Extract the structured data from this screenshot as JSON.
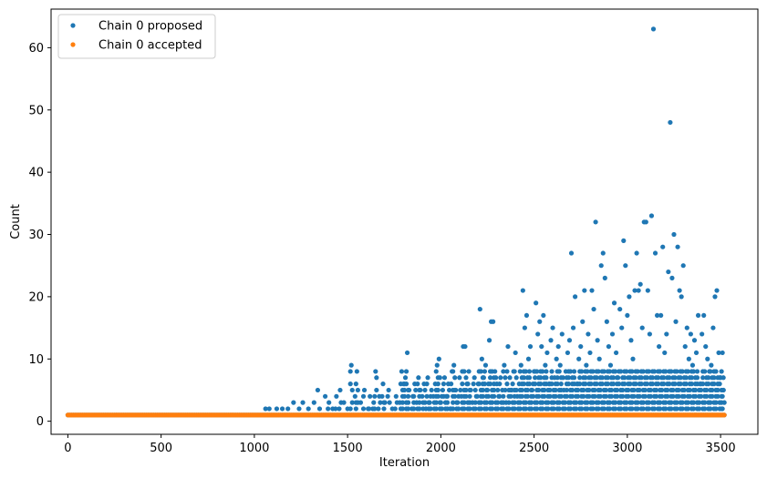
{
  "chart_data": {
    "type": "scatter",
    "title": "",
    "xlabel": "Iteration",
    "ylabel": "Count",
    "xlim": [
      -90,
      3700
    ],
    "ylim": [
      -2.1,
      66.2
    ],
    "xticks": [
      0,
      500,
      1000,
      1500,
      2000,
      2500,
      3000,
      3500
    ],
    "yticks": [
      0,
      10,
      20,
      30,
      40,
      50,
      60
    ],
    "legend": {
      "position": "top-left"
    },
    "grid": false,
    "total_iterations": 3520,
    "series": [
      {
        "name": "Chain 0 proposed",
        "color": "#1f77b4",
        "marker": "circle",
        "values_note": "",
        "baseline_value": 1,
        "points": [
          [
            1060,
            2
          ],
          [
            1080,
            2
          ],
          [
            1120,
            2
          ],
          [
            1150,
            2
          ],
          [
            1180,
            2
          ],
          [
            1210,
            3
          ],
          [
            1240,
            2
          ],
          [
            1260,
            3
          ],
          [
            1290,
            2
          ],
          [
            1320,
            3
          ],
          [
            1340,
            5
          ],
          [
            1350,
            2
          ],
          [
            1380,
            4
          ],
          [
            1400,
            3
          ],
          [
            1420,
            2
          ],
          [
            1440,
            4
          ],
          [
            1460,
            5
          ],
          [
            1480,
            3
          ],
          [
            1500,
            2
          ],
          [
            1520,
            9
          ],
          [
            1540,
            4
          ],
          [
            1550,
            8
          ],
          [
            1570,
            3
          ],
          [
            1590,
            5
          ],
          [
            1610,
            2
          ],
          [
            1620,
            4
          ],
          [
            1640,
            3
          ],
          [
            1650,
            8
          ],
          [
            1670,
            4
          ],
          [
            1690,
            6
          ],
          [
            1700,
            3
          ],
          [
            1720,
            5
          ],
          [
            1740,
            2
          ],
          [
            1760,
            4
          ],
          [
            1780,
            3
          ],
          [
            1790,
            8
          ],
          [
            1800,
            6
          ],
          [
            1810,
            7
          ],
          [
            1820,
            11
          ],
          [
            1830,
            5
          ],
          [
            1850,
            4
          ],
          [
            1860,
            6
          ],
          [
            1870,
            3
          ],
          [
            1880,
            7
          ],
          [
            1890,
            5
          ],
          [
            1900,
            4
          ],
          [
            1910,
            6
          ],
          [
            1920,
            2
          ],
          [
            1930,
            7
          ],
          [
            1940,
            3
          ],
          [
            1950,
            5
          ],
          [
            1960,
            4
          ],
          [
            1970,
            6
          ],
          [
            1980,
            9
          ],
          [
            1990,
            10
          ],
          [
            2000,
            3
          ],
          [
            2010,
            5
          ],
          [
            2020,
            7
          ],
          [
            2030,
            4
          ],
          [
            2040,
            6
          ],
          [
            2050,
            2
          ],
          [
            2060,
            8
          ],
          [
            2070,
            9
          ],
          [
            2080,
            5
          ],
          [
            2090,
            3
          ],
          [
            2100,
            7
          ],
          [
            2110,
            4
          ],
          [
            2120,
            12
          ],
          [
            2130,
            12
          ],
          [
            2140,
            6
          ],
          [
            2150,
            8
          ],
          [
            2160,
            5
          ],
          [
            2170,
            3
          ],
          [
            2180,
            7
          ],
          [
            2190,
            4
          ],
          [
            2200,
            6
          ],
          [
            2210,
            18
          ],
          [
            2220,
            10
          ],
          [
            2230,
            7
          ],
          [
            2240,
            9
          ],
          [
            2250,
            5
          ],
          [
            2260,
            13
          ],
          [
            2270,
            16
          ],
          [
            2280,
            16
          ],
          [
            2290,
            8
          ],
          [
            2300,
            6
          ],
          [
            2310,
            4
          ],
          [
            2320,
            7
          ],
          [
            2330,
            5
          ],
          [
            2340,
            9
          ],
          [
            2350,
            3
          ],
          [
            2360,
            12
          ],
          [
            2370,
            7
          ],
          [
            2380,
            5
          ],
          [
            2390,
            8
          ],
          [
            2400,
            11
          ],
          [
            2410,
            4
          ],
          [
            2420,
            6
          ],
          [
            2430,
            9
          ],
          [
            2440,
            21
          ],
          [
            2450,
            15
          ],
          [
            2460,
            17
          ],
          [
            2470,
            10
          ],
          [
            2480,
            12
          ],
          [
            2490,
            5
          ],
          [
            2500,
            8
          ],
          [
            2510,
            19
          ],
          [
            2520,
            14
          ],
          [
            2530,
            16
          ],
          [
            2540,
            12
          ],
          [
            2550,
            17
          ],
          [
            2560,
            9
          ],
          [
            2570,
            11
          ],
          [
            2580,
            6
          ],
          [
            2590,
            13
          ],
          [
            2600,
            15
          ],
          [
            2610,
            7
          ],
          [
            2620,
            10
          ],
          [
            2630,
            12
          ],
          [
            2640,
            9
          ],
          [
            2650,
            14
          ],
          [
            2660,
            5
          ],
          [
            2670,
            8
          ],
          [
            2680,
            11
          ],
          [
            2690,
            13
          ],
          [
            2700,
            27
          ],
          [
            2710,
            15
          ],
          [
            2720,
            20
          ],
          [
            2730,
            6
          ],
          [
            2740,
            10
          ],
          [
            2750,
            12
          ],
          [
            2760,
            16
          ],
          [
            2770,
            21
          ],
          [
            2780,
            9
          ],
          [
            2790,
            14
          ],
          [
            2800,
            11
          ],
          [
            2810,
            21
          ],
          [
            2820,
            18
          ],
          [
            2830,
            32
          ],
          [
            2840,
            13
          ],
          [
            2850,
            10
          ],
          [
            2860,
            25
          ],
          [
            2870,
            27
          ],
          [
            2880,
            23
          ],
          [
            2890,
            16
          ],
          [
            2900,
            12
          ],
          [
            2910,
            9
          ],
          [
            2920,
            14
          ],
          [
            2930,
            19
          ],
          [
            2940,
            11
          ],
          [
            2950,
            7
          ],
          [
            2960,
            18
          ],
          [
            2970,
            15
          ],
          [
            2980,
            29
          ],
          [
            2990,
            25
          ],
          [
            3000,
            17
          ],
          [
            3010,
            20
          ],
          [
            3020,
            13
          ],
          [
            3030,
            10
          ],
          [
            3040,
            21
          ],
          [
            3050,
            27
          ],
          [
            3060,
            21
          ],
          [
            3070,
            22
          ],
          [
            3080,
            15
          ],
          [
            3090,
            32
          ],
          [
            3100,
            32
          ],
          [
            3110,
            21
          ],
          [
            3120,
            14
          ],
          [
            3130,
            33
          ],
          [
            3140,
            63
          ],
          [
            3150,
            27
          ],
          [
            3160,
            17
          ],
          [
            3170,
            12
          ],
          [
            3180,
            17
          ],
          [
            3190,
            28
          ],
          [
            3200,
            11
          ],
          [
            3210,
            14
          ],
          [
            3220,
            24
          ],
          [
            3230,
            48
          ],
          [
            3240,
            23
          ],
          [
            3250,
            30
          ],
          [
            3260,
            16
          ],
          [
            3270,
            28
          ],
          [
            3280,
            21
          ],
          [
            3290,
            20
          ],
          [
            3300,
            25
          ],
          [
            3310,
            12
          ],
          [
            3320,
            15
          ],
          [
            3330,
            10
          ],
          [
            3340,
            14
          ],
          [
            3350,
            9
          ],
          [
            3360,
            13
          ],
          [
            3370,
            11
          ],
          [
            3380,
            17
          ],
          [
            3390,
            6
          ],
          [
            3400,
            14
          ],
          [
            3410,
            17
          ],
          [
            3420,
            12
          ],
          [
            3430,
            10
          ],
          [
            3440,
            8
          ],
          [
            3450,
            9
          ],
          [
            3460,
            15
          ],
          [
            3470,
            20
          ],
          [
            3480,
            21
          ],
          [
            3490,
            11
          ],
          [
            3500,
            7
          ],
          [
            3510,
            11
          ],
          [
            3515,
            5
          ]
        ]
      },
      {
        "name": "Chain 0 accepted",
        "color": "#ff7f0e",
        "marker": "circle",
        "baseline_value": 1
      }
    ]
  }
}
